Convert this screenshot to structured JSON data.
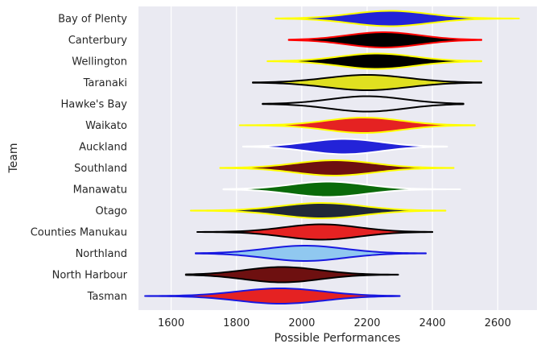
{
  "chart_data": {
    "type": "violin",
    "orientation": "horizontal",
    "xlabel": "Possible Performances",
    "ylabel": "Team",
    "xlim": [
      1500,
      2720
    ],
    "xticks": [
      1600,
      1800,
      2000,
      2200,
      2400,
      2600
    ],
    "grid": true,
    "background": "#eaeaf2",
    "teams": [
      {
        "name": "Bay of Plenty",
        "fill": "#2323d8",
        "edge": "#ffff00",
        "min": 1920,
        "max": 2665,
        "center": 2270,
        "spread": 120
      },
      {
        "name": "Canterbury",
        "fill": "#000000",
        "edge": "#ff0000",
        "min": 1960,
        "max": 2550,
        "center": 2250,
        "spread": 110
      },
      {
        "name": "Wellington",
        "fill": "#000000",
        "edge": "#ffff00",
        "min": 1895,
        "max": 2550,
        "center": 2230,
        "spread": 115
      },
      {
        "name": "Taranaki",
        "fill": "#e0e020",
        "edge": "#000000",
        "min": 1850,
        "max": 2550,
        "center": 2200,
        "spread": 125
      },
      {
        "name": "Hawke's Bay",
        "fill": "#eaeaf2",
        "edge": "#000000",
        "min": 1880,
        "max": 2495,
        "center": 2200,
        "spread": 115
      },
      {
        "name": "Waikato",
        "fill": "#e52222",
        "edge": "#ffff00",
        "min": 1810,
        "max": 2530,
        "center": 2190,
        "spread": 115
      },
      {
        "name": "Auckland",
        "fill": "#2323d8",
        "edge": "#ffffff",
        "min": 1820,
        "max": 2445,
        "center": 2130,
        "spread": 110
      },
      {
        "name": "Southland",
        "fill": "#6e1010",
        "edge": "#ffff00",
        "min": 1750,
        "max": 2465,
        "center": 2100,
        "spread": 120
      },
      {
        "name": "Manawatu",
        "fill": "#0a6a0a",
        "edge": "#ffffff",
        "min": 1760,
        "max": 2485,
        "center": 2080,
        "spread": 115
      },
      {
        "name": "Otago",
        "fill": "#202838",
        "edge": "#ffff00",
        "min": 1660,
        "max": 2440,
        "center": 2060,
        "spread": 125
      },
      {
        "name": "Counties Manukau",
        "fill": "#e52222",
        "edge": "#000000",
        "min": 1680,
        "max": 2400,
        "center": 2060,
        "spread": 115
      },
      {
        "name": "Northland",
        "fill": "#90c8f0",
        "edge": "#1818e0",
        "min": 1675,
        "max": 2380,
        "center": 2010,
        "spread": 120
      },
      {
        "name": "North Harbour",
        "fill": "#6e1010",
        "edge": "#000000",
        "min": 1645,
        "max": 2295,
        "center": 1940,
        "spread": 115
      },
      {
        "name": "Tasman",
        "fill": "#e52222",
        "edge": "#1818e0",
        "min": 1520,
        "max": 2300,
        "center": 1935,
        "spread": 130
      }
    ]
  }
}
